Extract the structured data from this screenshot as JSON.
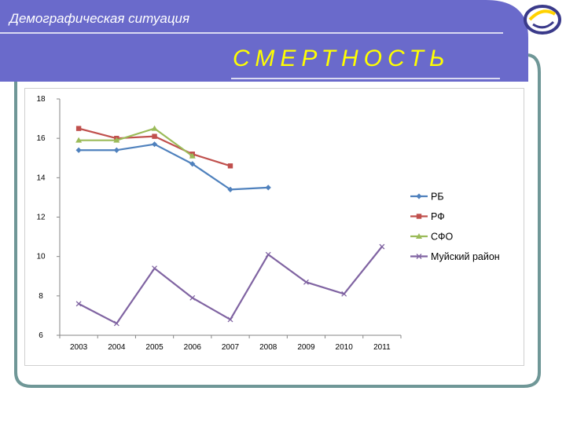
{
  "header": {
    "section_title": "Демографическая ситуация",
    "slide_title": "СМЕРТНОСТЬ"
  },
  "colors": {
    "banner": "#6a6acb",
    "frame": "#6f9797",
    "title_text": "#ffff00"
  },
  "chart_data": {
    "type": "line",
    "title": "",
    "xlabel": "",
    "ylabel": "",
    "categories": [
      "2003",
      "2004",
      "2005",
      "2006",
      "2007",
      "2008",
      "2009",
      "2010",
      "2011"
    ],
    "ylim": [
      6,
      18
    ],
    "yticks": [
      6,
      8,
      10,
      12,
      14,
      16,
      18
    ],
    "grid": false,
    "legend": "right",
    "series": [
      {
        "name": "РБ",
        "color": "#4f81bd",
        "marker": "diamond",
        "values": [
          15.4,
          15.4,
          15.7,
          14.7,
          13.4,
          13.5,
          null,
          null,
          null
        ]
      },
      {
        "name": "РФ",
        "color": "#c0504d",
        "marker": "square",
        "values": [
          16.5,
          16.0,
          16.1,
          15.2,
          14.6,
          null,
          null,
          null,
          null
        ]
      },
      {
        "name": "СФО",
        "color": "#9bbb59",
        "marker": "triangle",
        "values": [
          15.9,
          15.9,
          16.5,
          15.1,
          null,
          null,
          null,
          null,
          null
        ]
      },
      {
        "name": "Муйский район",
        "color": "#8064a2",
        "marker": "x",
        "values": [
          7.6,
          6.6,
          9.4,
          7.9,
          6.8,
          10.1,
          8.7,
          8.1,
          10.5
        ]
      }
    ]
  }
}
